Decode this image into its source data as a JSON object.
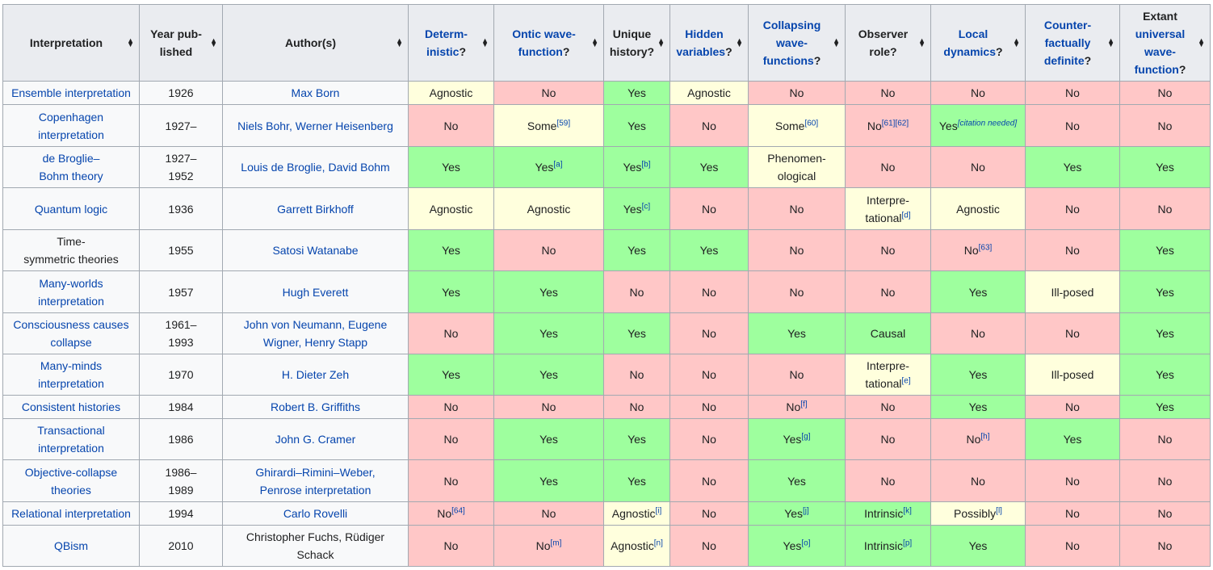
{
  "colors": {
    "yes": "#9EFF9E",
    "no": "#FFC7C7",
    "partial": "#FFFFDD"
  },
  "sort_icon": "sort-up-down-icon",
  "headers": [
    {
      "pre": "",
      "link": "",
      "text": "Interpretation"
    },
    {
      "pre": "",
      "link": "",
      "text": "Year pub-\nlished"
    },
    {
      "pre": "",
      "link": "",
      "text": "Author(s)"
    },
    {
      "pre": "",
      "link": "Determ-\ninistic",
      "text": "?"
    },
    {
      "pre": "",
      "link": "Ontic wave-\nfunction",
      "text": "?"
    },
    {
      "pre": "",
      "link": "",
      "text": "Unique\nhistory?"
    },
    {
      "pre": "",
      "link": "Hidden\nvariables",
      "text": "?"
    },
    {
      "pre": "",
      "link": "Collapsing\nwave-\nfunctions",
      "text": "?"
    },
    {
      "pre": "",
      "link": "",
      "text": "Observer\nrole?"
    },
    {
      "pre": "",
      "link": "Local\ndynamics",
      "text": "?"
    },
    {
      "pre": "",
      "link": "Counter-\nfactually\ndefinite",
      "text": "?"
    },
    {
      "pre": "Extant\n",
      "link": "universal\nwave-\nfunction",
      "text": "?"
    }
  ],
  "rows": [
    {
      "name": "Ensemble interpretation",
      "name_link": true,
      "year": "1926",
      "authors": "Max Born",
      "authors_link": true,
      "cells": [
        [
          "Agnostic",
          "",
          "partial"
        ],
        [
          "No",
          "",
          "no"
        ],
        [
          "Yes",
          "",
          "yes"
        ],
        [
          "Agnostic",
          "",
          "partial"
        ],
        [
          "No",
          "",
          "no"
        ],
        [
          "No",
          "",
          "no"
        ],
        [
          "No",
          "",
          "no"
        ],
        [
          "No",
          "",
          "no"
        ],
        [
          "No",
          "",
          "no"
        ]
      ]
    },
    {
      "name": "Copenhagen\ninterpretation",
      "name_link": true,
      "year": "1927–",
      "authors": "Niels Bohr, Werner Heisenberg",
      "authors_link": true,
      "cells": [
        [
          "No",
          "",
          "no"
        ],
        [
          "Some",
          "[59]",
          "partial"
        ],
        [
          "Yes",
          "",
          "yes"
        ],
        [
          "No",
          "",
          "no"
        ],
        [
          "Some",
          "[60]",
          "partial"
        ],
        [
          "No",
          "[61][62]",
          "no"
        ],
        [
          "Yes",
          "[citation needed]",
          "yes"
        ],
        [
          "No",
          "",
          "no"
        ],
        [
          "No",
          "",
          "no"
        ]
      ]
    },
    {
      "name": "de Broglie–\nBohm theory",
      "name_link": true,
      "year": "1927–\n1952",
      "authors": "Louis de Broglie, David Bohm",
      "authors_link": true,
      "cells": [
        [
          "Yes",
          "",
          "yes"
        ],
        [
          "Yes",
          "[a]",
          "yes"
        ],
        [
          "Yes",
          "[b]",
          "yes"
        ],
        [
          "Yes",
          "",
          "yes"
        ],
        [
          "Phenomen-\nological",
          "",
          "partial"
        ],
        [
          "No",
          "",
          "no"
        ],
        [
          "No",
          "",
          "no"
        ],
        [
          "Yes",
          "",
          "yes"
        ],
        [
          "Yes",
          "",
          "yes"
        ]
      ]
    },
    {
      "name": "Quantum logic",
      "name_link": true,
      "year": "1936",
      "authors": "Garrett Birkhoff",
      "authors_link": true,
      "cells": [
        [
          "Agnostic",
          "",
          "partial"
        ],
        [
          "Agnostic",
          "",
          "partial"
        ],
        [
          "Yes",
          "[c]",
          "yes"
        ],
        [
          "No",
          "",
          "no"
        ],
        [
          "No",
          "",
          "no"
        ],
        [
          "Interpre-\ntational",
          "[d]",
          "partial"
        ],
        [
          "Agnostic",
          "",
          "partial"
        ],
        [
          "No",
          "",
          "no"
        ],
        [
          "No",
          "",
          "no"
        ]
      ]
    },
    {
      "name": "Time-\nsymmetric theories",
      "name_link": false,
      "year": "1955",
      "authors": "Satosi Watanabe",
      "authors_link": true,
      "cells": [
        [
          "Yes",
          "",
          "yes"
        ],
        [
          "No",
          "",
          "no"
        ],
        [
          "Yes",
          "",
          "yes"
        ],
        [
          "Yes",
          "",
          "yes"
        ],
        [
          "No",
          "",
          "no"
        ],
        [
          "No",
          "",
          "no"
        ],
        [
          "No",
          "[63]",
          "no"
        ],
        [
          "No",
          "",
          "no"
        ],
        [
          "Yes",
          "",
          "yes"
        ]
      ]
    },
    {
      "name": "Many-worlds\ninterpretation",
      "name_link": true,
      "year": "1957",
      "authors": "Hugh Everett",
      "authors_link": true,
      "cells": [
        [
          "Yes",
          "",
          "yes"
        ],
        [
          "Yes",
          "",
          "yes"
        ],
        [
          "No",
          "",
          "no"
        ],
        [
          "No",
          "",
          "no"
        ],
        [
          "No",
          "",
          "no"
        ],
        [
          "No",
          "",
          "no"
        ],
        [
          "Yes",
          "",
          "yes"
        ],
        [
          "Ill-posed",
          "",
          "partial"
        ],
        [
          "Yes",
          "",
          "yes"
        ]
      ]
    },
    {
      "name": "Consciousness causes\ncollapse",
      "name_link": true,
      "year": "1961–\n1993",
      "authors": "John von Neumann, Eugene\nWigner, Henry Stapp",
      "authors_link": true,
      "cells": [
        [
          "No",
          "",
          "no"
        ],
        [
          "Yes",
          "",
          "yes"
        ],
        [
          "Yes",
          "",
          "yes"
        ],
        [
          "No",
          "",
          "no"
        ],
        [
          "Yes",
          "",
          "yes"
        ],
        [
          "Causal",
          "",
          "yes"
        ],
        [
          "No",
          "",
          "no"
        ],
        [
          "No",
          "",
          "no"
        ],
        [
          "Yes",
          "",
          "yes"
        ]
      ]
    },
    {
      "name": "Many-minds\ninterpretation",
      "name_link": true,
      "year": "1970",
      "authors": "H. Dieter Zeh",
      "authors_link": true,
      "cells": [
        [
          "Yes",
          "",
          "yes"
        ],
        [
          "Yes",
          "",
          "yes"
        ],
        [
          "No",
          "",
          "no"
        ],
        [
          "No",
          "",
          "no"
        ],
        [
          "No",
          "",
          "no"
        ],
        [
          "Interpre-\ntational",
          "[e]",
          "partial"
        ],
        [
          "Yes",
          "",
          "yes"
        ],
        [
          "Ill-posed",
          "",
          "partial"
        ],
        [
          "Yes",
          "",
          "yes"
        ]
      ]
    },
    {
      "name": "Consistent histories",
      "name_link": true,
      "year": "1984",
      "authors": "Robert B. Griffiths",
      "authors_link": true,
      "cells": [
        [
          "No",
          "",
          "no"
        ],
        [
          "No",
          "",
          "no"
        ],
        [
          "No",
          "",
          "no"
        ],
        [
          "No",
          "",
          "no"
        ],
        [
          "No",
          "[f]",
          "no"
        ],
        [
          "No",
          "",
          "no"
        ],
        [
          "Yes",
          "",
          "yes"
        ],
        [
          "No",
          "",
          "no"
        ],
        [
          "Yes",
          "",
          "yes"
        ]
      ]
    },
    {
      "name": "Transactional\ninterpretation",
      "name_link": true,
      "year": "1986",
      "authors": "John G. Cramer",
      "authors_link": true,
      "cells": [
        [
          "No",
          "",
          "no"
        ],
        [
          "Yes",
          "",
          "yes"
        ],
        [
          "Yes",
          "",
          "yes"
        ],
        [
          "No",
          "",
          "no"
        ],
        [
          "Yes",
          "[g]",
          "yes"
        ],
        [
          "No",
          "",
          "no"
        ],
        [
          "No",
          "[h]",
          "no"
        ],
        [
          "Yes",
          "",
          "yes"
        ],
        [
          "No",
          "",
          "no"
        ]
      ]
    },
    {
      "name": "Objective-collapse\ntheories",
      "name_link": true,
      "year": "1986–\n1989",
      "authors": "Ghirardi–Rimini–Weber,\nPenrose interpretation",
      "authors_link": true,
      "cells": [
        [
          "No",
          "",
          "no"
        ],
        [
          "Yes",
          "",
          "yes"
        ],
        [
          "Yes",
          "",
          "yes"
        ],
        [
          "No",
          "",
          "no"
        ],
        [
          "Yes",
          "",
          "yes"
        ],
        [
          "No",
          "",
          "no"
        ],
        [
          "No",
          "",
          "no"
        ],
        [
          "No",
          "",
          "no"
        ],
        [
          "No",
          "",
          "no"
        ]
      ]
    },
    {
      "name": "Relational interpretation",
      "name_link": true,
      "year": "1994",
      "authors": "Carlo Rovelli",
      "authors_link": true,
      "cells": [
        [
          "No",
          "[64]",
          "no"
        ],
        [
          "No",
          "",
          "no"
        ],
        [
          "Agnostic",
          "[i]",
          "partial"
        ],
        [
          "No",
          "",
          "no"
        ],
        [
          "Yes",
          "[j]",
          "yes"
        ],
        [
          "Intrinsic",
          "[k]",
          "yes"
        ],
        [
          "Possibly",
          "[l]",
          "partial"
        ],
        [
          "No",
          "",
          "no"
        ],
        [
          "No",
          "",
          "no"
        ]
      ]
    },
    {
      "name": "QBism",
      "name_link": true,
      "year": "2010",
      "authors": "Christopher Fuchs, Rüdiger\nSchack",
      "authors_link": false,
      "cells": [
        [
          "No",
          "",
          "no"
        ],
        [
          "No",
          "[m]",
          "no"
        ],
        [
          "Agnostic",
          "[n]",
          "partial"
        ],
        [
          "No",
          "",
          "no"
        ],
        [
          "Yes",
          "[o]",
          "yes"
        ],
        [
          "Intrinsic",
          "[p]",
          "yes"
        ],
        [
          "Yes",
          "",
          "yes"
        ],
        [
          "No",
          "",
          "no"
        ],
        [
          "No",
          "",
          "no"
        ]
      ]
    }
  ]
}
